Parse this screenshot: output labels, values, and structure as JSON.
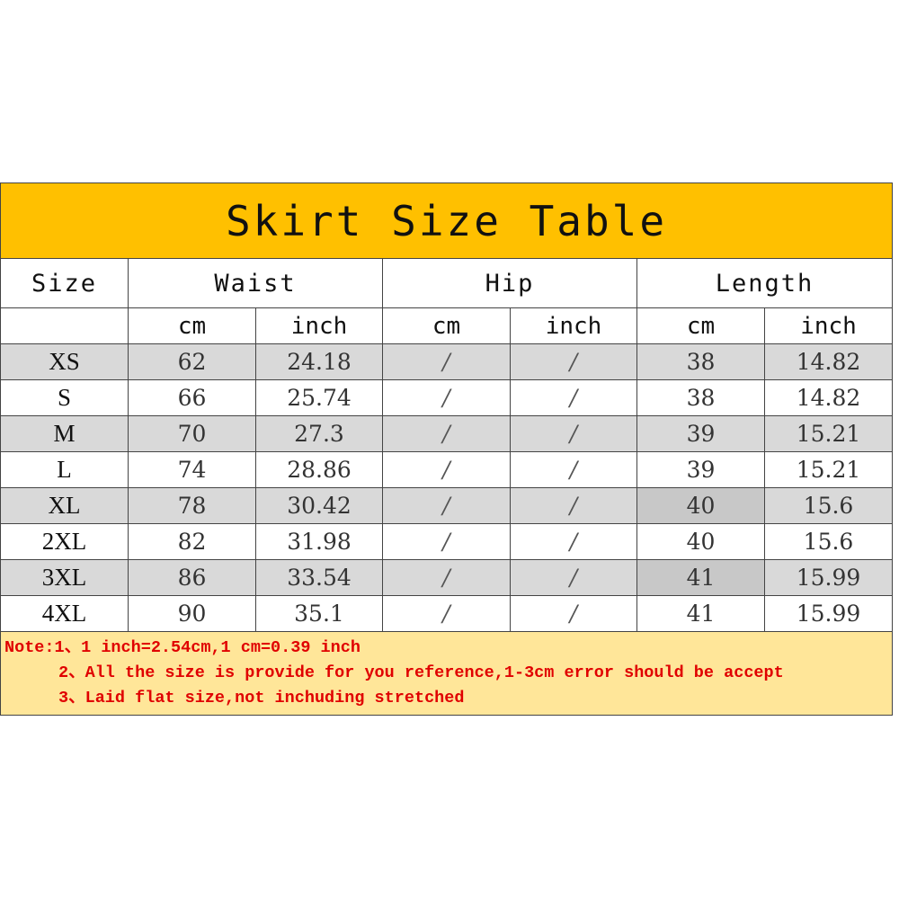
{
  "title": "Skirt Size Table",
  "headers": {
    "size": "Size",
    "waist": "Waist",
    "hip": "Hip",
    "length": "Length"
  },
  "units": [
    "cm",
    "inch",
    "cm",
    "inch",
    "cm",
    "inch"
  ],
  "rows": [
    [
      "XS",
      "62",
      "24.18",
      "/",
      "/",
      "38",
      "14.82"
    ],
    [
      "S",
      "66",
      "25.74",
      "/",
      "/",
      "38",
      "14.82"
    ],
    [
      "M",
      "70",
      "27.3",
      "/",
      "/",
      "39",
      "15.21"
    ],
    [
      "L",
      "74",
      "28.86",
      "/",
      "/",
      "39",
      "15.21"
    ],
    [
      "XL",
      "78",
      "30.42",
      "/",
      "/",
      "40",
      "15.6"
    ],
    [
      "2XL",
      "82",
      "31.98",
      "/",
      "/",
      "40",
      "15.6"
    ],
    [
      "3XL",
      "86",
      "33.54",
      "/",
      "/",
      "41",
      "15.99"
    ],
    [
      "4XL",
      "90",
      "35.1",
      "/",
      "/",
      "41",
      "15.99"
    ]
  ],
  "notes": [
    "Note:1、1 inch=2.54cm,1 cm=0.39 inch",
    "2、All the size is provide for you reference,1-3cm error should be accept",
    "3、Laid flat size,not inchuding stretched"
  ],
  "colors": {
    "title_bg": "#ffc000",
    "notes_bg": "#ffe699",
    "notes_text": "#e00000",
    "alt_row": "#d9d9d9"
  }
}
